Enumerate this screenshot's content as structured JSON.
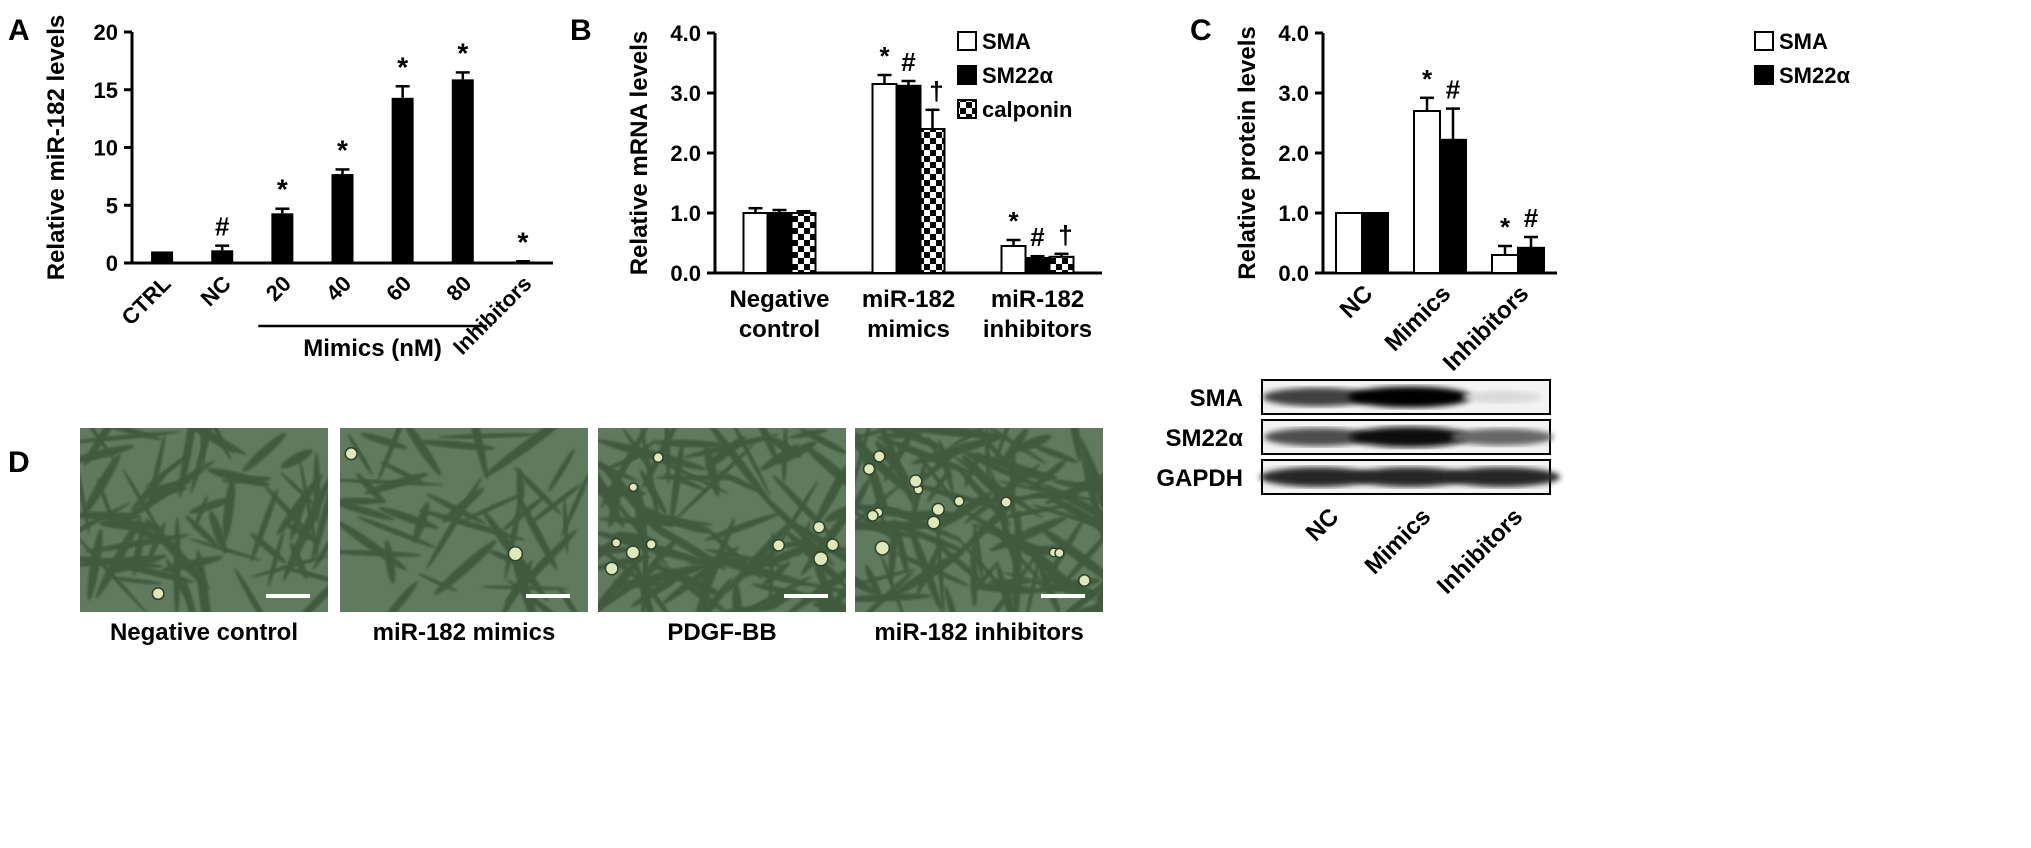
{
  "panel_letters": {
    "a": "A",
    "b": "B",
    "c": "C",
    "d": "D"
  },
  "chart_data": [
    {
      "id": "A",
      "type": "bar",
      "ylabel": "Relative miR-182 levels",
      "ylim": [
        0,
        20
      ],
      "yticks": [
        "0",
        "5",
        "10",
        "15",
        "20"
      ],
      "ytick_values": [
        0,
        5,
        10,
        15,
        20
      ],
      "categories": [
        "CTRL",
        "NC",
        "20",
        "40",
        "60",
        "80",
        "Inhibitors"
      ],
      "values": [
        1.0,
        1.1,
        4.3,
        7.7,
        14.3,
        15.9,
        0.1
      ],
      "errors": [
        0.0,
        0.4,
        0.4,
        0.4,
        1.0,
        0.6,
        0.05
      ],
      "annotations": [
        "",
        "#",
        "*",
        "*",
        "*",
        "*",
        "*"
      ],
      "group_label": "Mimics (nM)"
    },
    {
      "id": "B",
      "type": "bar",
      "ylabel": "Relative mRNA levels",
      "ylim": [
        0,
        4
      ],
      "yticks": [
        "0.0",
        "1.0",
        "2.0",
        "3.0",
        "4.0"
      ],
      "ytick_values": [
        0,
        1,
        2,
        3,
        4
      ],
      "categories": [
        [
          "Negative",
          "control"
        ],
        [
          "miR-182",
          "mimics"
        ],
        [
          "miR-182",
          "inhibitors"
        ]
      ],
      "series": [
        {
          "name": "SMA",
          "values": [
            1.0,
            3.15,
            0.45
          ],
          "errors": [
            0.08,
            0.15,
            0.1
          ],
          "annotations": [
            "",
            "*",
            "*"
          ]
        },
        {
          "name": "SM22α",
          "values": [
            1.0,
            3.12,
            0.25
          ],
          "errors": [
            0.05,
            0.08,
            0.03
          ],
          "annotations": [
            "",
            "#",
            "#"
          ]
        },
        {
          "name": "calponin",
          "values": [
            1.0,
            2.4,
            0.27
          ],
          "errors": [
            0.03,
            0.32,
            0.05
          ],
          "annotations": [
            "",
            "†",
            "†"
          ]
        }
      ]
    },
    {
      "id": "C",
      "type": "bar",
      "ylabel": "Relative protein levels",
      "ylim": [
        0,
        4
      ],
      "yticks": [
        "0.0",
        "1.0",
        "2.0",
        "3.0",
        "4.0"
      ],
      "ytick_values": [
        0,
        1,
        2,
        3,
        4
      ],
      "categories": [
        "NC",
        "Mimics",
        "Inhibitors"
      ],
      "series": [
        {
          "name": "SMA",
          "values": [
            1.0,
            2.7,
            0.3
          ],
          "errors": [
            0.0,
            0.22,
            0.15
          ],
          "annotations": [
            "",
            "*",
            "*"
          ]
        },
        {
          "name": "SM22α",
          "values": [
            1.0,
            2.22,
            0.42
          ],
          "errors": [
            0.0,
            0.52,
            0.18
          ],
          "annotations": [
            "",
            "#",
            "#"
          ]
        }
      ]
    }
  ],
  "western_blot": {
    "rows": [
      "SMA",
      "SM22α",
      "GAPDH"
    ],
    "lanes": [
      "NC",
      "Mimics",
      "Inhibitors"
    ],
    "band_intensity": [
      [
        0.75,
        1.0,
        0.15
      ],
      [
        0.7,
        0.95,
        0.6
      ],
      [
        0.85,
        0.85,
        0.85
      ]
    ]
  },
  "micrographs": {
    "captions": [
      "Negative control",
      "miR-182 mimics",
      "PDGF-BB",
      "miR-182 inhibitors"
    ],
    "background_color": "#5f7a5c",
    "cell_color": "#3f5a3e",
    "highlight_color": "#dfe8b8"
  }
}
